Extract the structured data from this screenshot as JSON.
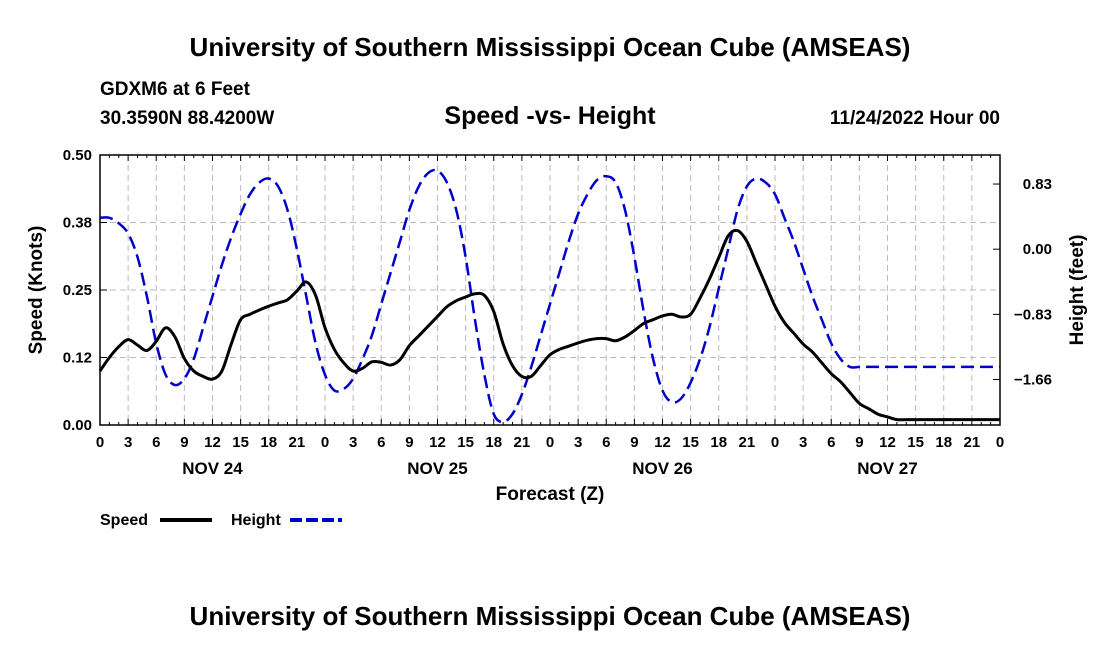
{
  "header": {
    "title": "University of Southern Mississippi Ocean Cube (AMSEAS)",
    "station": "GDXM6 at 6 Feet",
    "coords": "30.3590N  88.4200W",
    "chart_title": "Speed -vs- Height",
    "run_time": "11/24/2022 Hour 00"
  },
  "footer": {
    "title": "University of Southern Mississippi Ocean Cube (AMSEAS)"
  },
  "chart_data": {
    "type": "line",
    "title": "Speed -vs- Height",
    "xlabel": "Forecast (Z)",
    "ylabel": "Speed (Knots)",
    "y2label": "Height (feet)",
    "xlim": [
      0,
      96
    ],
    "ylim": [
      0,
      0.5
    ],
    "y2lim": [
      -2.24,
      1.2
    ],
    "x_tick_labels": [
      "0",
      "3",
      "6",
      "9",
      "12",
      "15",
      "18",
      "21",
      "0",
      "3",
      "6",
      "9",
      "12",
      "15",
      "18",
      "21",
      "0",
      "3",
      "6",
      "9",
      "12",
      "15",
      "18",
      "21",
      "0",
      "3",
      "6",
      "9",
      "12",
      "15",
      "18",
      "21",
      "0"
    ],
    "day_labels": [
      "NOV 24",
      "NOV 25",
      "NOV 26",
      "NOV 27"
    ],
    "day_label_hours": [
      12,
      36,
      60,
      84
    ],
    "y_ticks": [
      0,
      0.125,
      0.25,
      0.375,
      0.5
    ],
    "y_tick_labels": [
      "0.00",
      "0.12",
      "0.25",
      "0.38",
      "0.50"
    ],
    "y2_ticks": [
      0.83,
      0.0,
      -0.83,
      -1.66
    ],
    "y2_tick_labels": [
      "0.83",
      "0.00",
      "−0.83",
      "−1.66"
    ],
    "grid": true,
    "legend_position": "bottom-left",
    "series": [
      {
        "name": "Speed",
        "axis": "left",
        "color": "#000000",
        "dash": "solid",
        "x": [
          0,
          1,
          2,
          3,
          4,
          5,
          6,
          7,
          8,
          9,
          10,
          11,
          12,
          13,
          14,
          15,
          16,
          17,
          18,
          19,
          20,
          21,
          22,
          23,
          24,
          25,
          26,
          27,
          28,
          29,
          30,
          31,
          32,
          33,
          34,
          35,
          36,
          37,
          38,
          39,
          40,
          41,
          42,
          43,
          44,
          45,
          46,
          47,
          48,
          49,
          50,
          51,
          52,
          53,
          54,
          55,
          56,
          57,
          58,
          59,
          60,
          61,
          62,
          63,
          64,
          65,
          66,
          67,
          68,
          69,
          70,
          71,
          72,
          73,
          74,
          75,
          76,
          77,
          78,
          79,
          80,
          81,
          82,
          83,
          84,
          85,
          86,
          87,
          88,
          89,
          90,
          91,
          92,
          93,
          94,
          95,
          96
        ],
        "values": [
          0.1,
          0.125,
          0.145,
          0.158,
          0.148,
          0.138,
          0.155,
          0.18,
          0.163,
          0.123,
          0.1,
          0.09,
          0.085,
          0.1,
          0.15,
          0.195,
          0.205,
          0.213,
          0.22,
          0.226,
          0.232,
          0.248,
          0.265,
          0.24,
          0.18,
          0.14,
          0.115,
          0.1,
          0.105,
          0.117,
          0.116,
          0.111,
          0.121,
          0.147,
          0.165,
          0.183,
          0.201,
          0.219,
          0.23,
          0.237,
          0.243,
          0.24,
          0.21,
          0.15,
          0.11,
          0.09,
          0.09,
          0.11,
          0.13,
          0.14,
          0.146,
          0.152,
          0.157,
          0.16,
          0.16,
          0.156,
          0.163,
          0.175,
          0.188,
          0.195,
          0.202,
          0.205,
          0.2,
          0.205,
          0.235,
          0.27,
          0.31,
          0.35,
          0.36,
          0.34,
          0.3,
          0.26,
          0.22,
          0.19,
          0.17,
          0.15,
          0.135,
          0.115,
          0.095,
          0.08,
          0.06,
          0.04,
          0.03,
          0.02,
          0.015,
          0.01,
          0.01,
          0.01,
          0.01,
          0.01,
          0.01,
          0.01,
          0.01,
          0.01,
          0.01,
          0.01,
          0.01
        ]
      },
      {
        "name": "Height",
        "axis": "right",
        "color": "#0000cc",
        "dash": "dashed",
        "x": [
          0,
          1,
          2,
          3,
          4,
          5,
          6,
          7,
          8,
          9,
          10,
          11,
          12,
          13,
          14,
          15,
          16,
          17,
          18,
          19,
          20,
          21,
          22,
          23,
          24,
          25,
          26,
          27,
          28,
          29,
          30,
          31,
          32,
          33,
          34,
          35,
          36,
          37,
          38,
          39,
          40,
          41,
          42,
          43,
          44,
          45,
          46,
          47,
          48,
          49,
          50,
          51,
          52,
          53,
          54,
          55,
          56,
          57,
          58,
          59,
          60,
          61,
          62,
          63,
          64,
          65,
          66,
          67,
          68,
          69,
          70,
          71,
          72,
          73,
          74,
          75,
          76,
          77,
          78,
          79,
          80,
          81,
          82,
          83,
          84,
          85,
          86,
          87,
          88,
          89,
          90,
          91,
          92,
          93,
          94,
          95,
          96
        ],
        "values": [
          0.4,
          0.4,
          0.33,
          0.2,
          -0.1,
          -0.6,
          -1.2,
          -1.6,
          -1.73,
          -1.65,
          -1.4,
          -1.0,
          -0.6,
          -0.2,
          0.15,
          0.45,
          0.7,
          0.85,
          0.9,
          0.8,
          0.5,
          0.0,
          -0.6,
          -1.2,
          -1.6,
          -1.8,
          -1.78,
          -1.65,
          -1.4,
          -1.1,
          -0.7,
          -0.3,
          0.1,
          0.5,
          0.8,
          0.97,
          1.0,
          0.85,
          0.5,
          -0.1,
          -0.9,
          -1.6,
          -2.1,
          -2.2,
          -2.1,
          -1.85,
          -1.5,
          -1.1,
          -0.7,
          -0.3,
          0.1,
          0.45,
          0.7,
          0.88,
          0.93,
          0.85,
          0.5,
          -0.1,
          -0.8,
          -1.4,
          -1.8,
          -1.95,
          -1.9,
          -1.7,
          -1.4,
          -1.0,
          -0.5,
          0.0,
          0.5,
          0.8,
          0.9,
          0.85,
          0.7,
          0.4,
          0.1,
          -0.25,
          -0.6,
          -0.9,
          -1.2,
          -1.4,
          -1.5,
          -1.5,
          -1.5,
          -1.5,
          -1.5,
          -1.5,
          -1.5,
          -1.5,
          -1.5,
          -1.5,
          -1.5,
          -1.5,
          -1.5,
          -1.5,
          -1.5,
          -1.5,
          -1.5
        ]
      }
    ]
  }
}
